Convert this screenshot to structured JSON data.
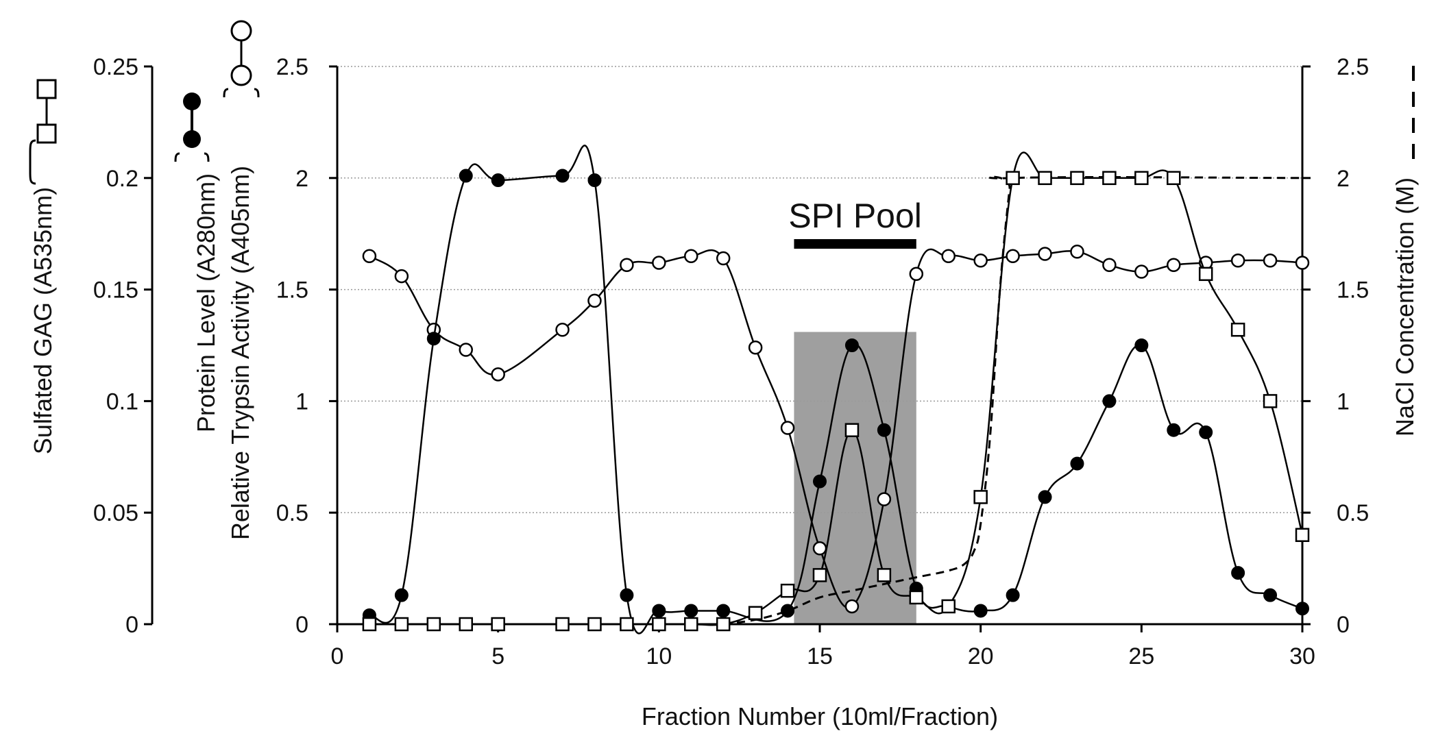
{
  "chart_data": {
    "type": "line",
    "xlabel": "Fraction Number (10ml/Fraction)",
    "x_ticks": [
      0,
      5,
      10,
      15,
      20,
      25,
      30
    ],
    "xlim": [
      0,
      30
    ],
    "axes": {
      "gag": {
        "label": "Sulfated GAG (A535nm)",
        "ylim": [
          0,
          0.25
        ],
        "ticks": [
          "0",
          "0.05",
          "0.1",
          "0.15",
          "0.2",
          "0.25"
        ]
      },
      "protein": {
        "label_line1": "Protein Level (A280nm)",
        "label_line2": "Relative Trypsin Activity (A405nm)",
        "ylim": [
          0,
          2.5
        ],
        "ticks": [
          "0",
          "0.5",
          "1",
          "1.5",
          "2",
          "2.5"
        ]
      },
      "nacl": {
        "label": "NaCl Concentration (M)",
        "ylim": [
          0,
          2.5
        ],
        "ticks": [
          "0",
          "0.5",
          "1",
          "1.5",
          "2",
          "2.5"
        ]
      }
    },
    "grid": true,
    "annotation": {
      "text": "SPI Pool",
      "x_range": [
        14.2,
        18.0
      ],
      "shaded_x": [
        14.2,
        18.0
      ],
      "shaded_y_top": 1.31
    },
    "series": [
      {
        "key": "protein",
        "axis": "protein",
        "marker": "filled-circle",
        "x": [
          1,
          2,
          3,
          4,
          5,
          7,
          8,
          9,
          10,
          11,
          12,
          14,
          15,
          16,
          17,
          18,
          19,
          20,
          21,
          22,
          23,
          24,
          25,
          26,
          27,
          28,
          29,
          30
        ],
        "values": [
          0.04,
          0.13,
          1.28,
          2.01,
          1.99,
          2.01,
          1.99,
          0.13,
          0.06,
          0.06,
          0.06,
          0.06,
          0.64,
          1.25,
          0.87,
          0.16,
          0.08,
          0.06,
          0.13,
          0.57,
          0.72,
          1.0,
          1.25,
          0.87,
          0.86,
          0.23,
          0.13,
          0.07
        ]
      },
      {
        "key": "trypsin",
        "axis": "protein",
        "marker": "open-circle",
        "x": [
          1,
          2,
          3,
          4,
          5,
          7,
          8,
          9,
          10,
          11,
          12,
          13,
          14,
          15,
          16,
          17,
          18,
          19,
          20,
          21,
          22,
          23,
          24,
          25,
          26,
          27,
          28,
          29,
          30
        ],
        "values": [
          1.65,
          1.56,
          1.32,
          1.23,
          1.12,
          1.32,
          1.45,
          1.61,
          1.62,
          1.65,
          1.64,
          1.24,
          0.88,
          0.34,
          0.08,
          0.56,
          1.57,
          1.65,
          1.63,
          1.65,
          1.66,
          1.67,
          1.61,
          1.58,
          1.61,
          1.62,
          1.63,
          1.63,
          1.62
        ]
      },
      {
        "key": "gag",
        "axis": "gag",
        "marker": "open-square",
        "x": [
          1,
          2,
          3,
          4,
          5,
          7,
          8,
          9,
          10,
          11,
          12,
          13,
          14,
          15,
          16,
          17,
          18,
          19,
          20,
          21,
          22,
          23,
          24,
          25,
          26,
          27,
          28,
          29,
          30
        ],
        "values": [
          0.0,
          0.0,
          0.0,
          0.0,
          0.0,
          0.0,
          0.0,
          0.0,
          0.0,
          0.0,
          0.0,
          0.005,
          0.015,
          0.022,
          0.087,
          0.022,
          0.012,
          0.008,
          0.057,
          0.2,
          0.2,
          0.2,
          0.2,
          0.2,
          0.2,
          0.157,
          0.132,
          0.1,
          0.04
        ]
      },
      {
        "key": "nacl",
        "axis": "nacl",
        "marker": "dashed-line",
        "x": [
          12,
          13,
          14,
          15,
          16,
          17,
          18,
          19,
          19.5,
          19.8,
          20,
          20.3,
          20.6,
          20.9,
          21,
          30
        ],
        "values": [
          0.0,
          0.02,
          0.06,
          0.12,
          0.15,
          0.18,
          0.21,
          0.24,
          0.27,
          0.33,
          0.45,
          0.85,
          1.5,
          1.95,
          2.0,
          2.0
        ]
      }
    ]
  }
}
